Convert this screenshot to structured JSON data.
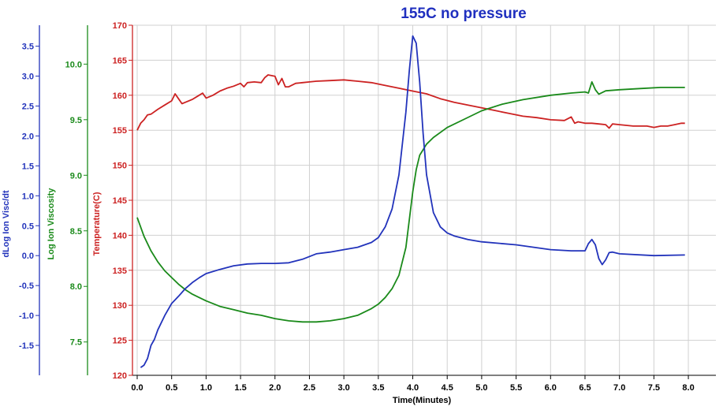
{
  "chart_data": {
    "type": "line",
    "title": "155C no pressure",
    "xlabel": "Time(Minutes)",
    "xlim": [
      0,
      8.4
    ],
    "xticks": [
      0.0,
      0.5,
      1.0,
      1.5,
      2.0,
      2.5,
      3.0,
      3.5,
      4.0,
      4.5,
      5.0,
      5.5,
      6.0,
      6.5,
      7.0,
      7.5,
      8.0
    ],
    "grid": true,
    "colors": {
      "title": "#1f2fbf",
      "temperature": "#cc2222",
      "log_ion_viscosity": "#1a8a1a",
      "dlog_ion_visc_dt": "#2233bb",
      "grid": "#d0d0d0",
      "frame": "#000000"
    },
    "axes": [
      {
        "key": "dlog",
        "label": "dLog Ion Visc/dt",
        "color": "#2233bb",
        "range": [
          -2.0,
          3.85
        ],
        "ticks": [
          -1.5,
          -1.0,
          -0.5,
          0.0,
          0.5,
          1.0,
          1.5,
          2.0,
          2.5,
          3.0,
          3.5
        ],
        "tick_labels": [
          "-1.5",
          "-1.0",
          "-0.5",
          "0.0",
          "0.5",
          "1.0",
          "1.5",
          "2.0",
          "2.5",
          "3.0",
          "3.5"
        ]
      },
      {
        "key": "logvisc",
        "label": "Log Ion Viscosity",
        "color": "#1a8a1a",
        "range": [
          7.2,
          10.35
        ],
        "ticks": [
          7.5,
          8.0,
          8.5,
          9.0,
          9.5,
          10.0
        ],
        "tick_labels": [
          "7.5",
          "8.0",
          "8.5",
          "9.0",
          "9.5",
          "10.0"
        ]
      },
      {
        "key": "temp",
        "label": "Temperature(C)",
        "color": "#cc2222",
        "range": [
          120,
          170
        ],
        "ticks": [
          120,
          125,
          130,
          135,
          140,
          145,
          150,
          155,
          160,
          165,
          170
        ],
        "tick_labels": [
          "120",
          "125",
          "130",
          "135",
          "140",
          "145",
          "150",
          "155",
          "160",
          "165",
          "170"
        ]
      }
    ],
    "series": [
      {
        "name": "Temperature(C)",
        "axis": "temp",
        "color": "#cc2222",
        "x": [
          0.0,
          0.05,
          0.1,
          0.15,
          0.2,
          0.3,
          0.4,
          0.5,
          0.55,
          0.6,
          0.65,
          0.7,
          0.8,
          0.9,
          0.95,
          1.0,
          1.1,
          1.2,
          1.3,
          1.4,
          1.5,
          1.55,
          1.6,
          1.7,
          1.8,
          1.85,
          1.9,
          2.0,
          2.05,
          2.1,
          2.15,
          2.2,
          2.3,
          2.4,
          2.5,
          2.6,
          2.8,
          3.0,
          3.2,
          3.4,
          3.6,
          3.8,
          4.0,
          4.2,
          4.4,
          4.6,
          4.8,
          5.0,
          5.2,
          5.4,
          5.6,
          5.8,
          6.0,
          6.2,
          6.3,
          6.35,
          6.4,
          6.5,
          6.6,
          6.7,
          6.8,
          6.85,
          6.9,
          7.0,
          7.2,
          7.4,
          7.5,
          7.6,
          7.7,
          7.8,
          7.9,
          7.95
        ],
        "y": [
          155.0,
          156.0,
          156.5,
          157.2,
          157.3,
          158.0,
          158.6,
          159.2,
          160.2,
          159.5,
          158.8,
          159.0,
          159.4,
          160.0,
          160.3,
          159.6,
          160.0,
          160.6,
          161.0,
          161.3,
          161.7,
          161.2,
          161.8,
          161.9,
          161.8,
          162.5,
          162.9,
          162.7,
          161.5,
          162.4,
          161.2,
          161.2,
          161.7,
          161.8,
          161.9,
          162.0,
          162.1,
          162.2,
          162.0,
          161.8,
          161.4,
          161.0,
          160.6,
          160.2,
          159.5,
          159.0,
          158.6,
          158.2,
          157.8,
          157.4,
          157.0,
          156.8,
          156.5,
          156.4,
          156.9,
          156.0,
          156.2,
          156.0,
          156.0,
          155.9,
          155.8,
          155.3,
          155.9,
          155.8,
          155.6,
          155.6,
          155.4,
          155.6,
          155.6,
          155.8,
          156.0,
          156.0
        ]
      },
      {
        "name": "Log Ion Viscosity",
        "axis": "logvisc",
        "color": "#1a8a1a",
        "x": [
          0.0,
          0.1,
          0.2,
          0.3,
          0.4,
          0.5,
          0.6,
          0.7,
          0.8,
          1.0,
          1.2,
          1.4,
          1.6,
          1.8,
          2.0,
          2.2,
          2.4,
          2.6,
          2.8,
          3.0,
          3.2,
          3.4,
          3.5,
          3.6,
          3.7,
          3.8,
          3.9,
          4.0,
          4.05,
          4.1,
          4.2,
          4.3,
          4.5,
          4.8,
          5.0,
          5.3,
          5.6,
          6.0,
          6.3,
          6.5,
          6.55,
          6.6,
          6.65,
          6.7,
          6.8,
          7.0,
          7.3,
          7.6,
          7.95
        ],
        "y": [
          8.62,
          8.45,
          8.32,
          8.22,
          8.14,
          8.08,
          8.02,
          7.97,
          7.93,
          7.87,
          7.82,
          7.79,
          7.76,
          7.74,
          7.71,
          7.69,
          7.68,
          7.68,
          7.69,
          7.71,
          7.74,
          7.8,
          7.84,
          7.9,
          7.98,
          8.1,
          8.35,
          8.85,
          9.05,
          9.18,
          9.28,
          9.34,
          9.43,
          9.52,
          9.58,
          9.64,
          9.68,
          9.72,
          9.74,
          9.75,
          9.74,
          9.84,
          9.77,
          9.73,
          9.76,
          9.77,
          9.78,
          9.79,
          9.79
        ]
      },
      {
        "name": "dLog Ion Visc/dt",
        "axis": "dlog",
        "color": "#2233bb",
        "x": [
          0.05,
          0.1,
          0.15,
          0.2,
          0.25,
          0.3,
          0.4,
          0.5,
          0.6,
          0.7,
          0.8,
          0.9,
          1.0,
          1.2,
          1.4,
          1.6,
          1.8,
          2.0,
          2.2,
          2.4,
          2.6,
          2.8,
          3.0,
          3.2,
          3.4,
          3.5,
          3.6,
          3.7,
          3.8,
          3.9,
          3.95,
          4.0,
          4.05,
          4.1,
          4.15,
          4.2,
          4.3,
          4.4,
          4.5,
          4.6,
          4.8,
          5.0,
          5.5,
          6.0,
          6.3,
          6.5,
          6.55,
          6.6,
          6.65,
          6.7,
          6.75,
          6.8,
          6.85,
          6.9,
          7.0,
          7.5,
          7.95
        ],
        "y": [
          -1.87,
          -1.83,
          -1.72,
          -1.5,
          -1.4,
          -1.24,
          -1.0,
          -0.8,
          -0.68,
          -0.55,
          -0.45,
          -0.37,
          -0.3,
          -0.23,
          -0.17,
          -0.14,
          -0.13,
          -0.13,
          -0.12,
          -0.06,
          0.03,
          0.06,
          0.1,
          0.14,
          0.22,
          0.3,
          0.48,
          0.78,
          1.35,
          2.4,
          3.1,
          3.67,
          3.55,
          2.9,
          2.05,
          1.35,
          0.72,
          0.48,
          0.38,
          0.33,
          0.27,
          0.23,
          0.18,
          0.1,
          0.08,
          0.08,
          0.2,
          0.27,
          0.18,
          -0.05,
          -0.15,
          -0.07,
          0.05,
          0.06,
          0.03,
          0.0,
          0.01
        ]
      }
    ]
  }
}
